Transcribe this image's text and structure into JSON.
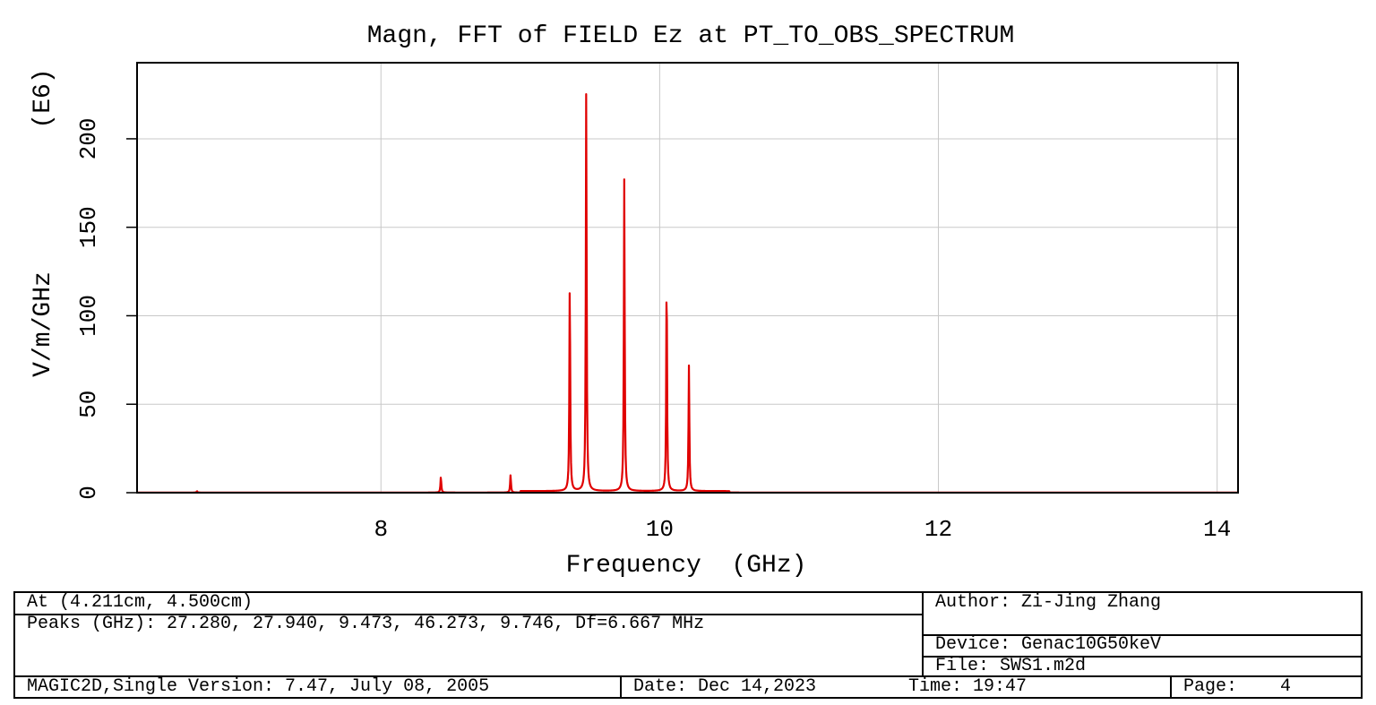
{
  "chart_data": {
    "type": "line",
    "title": "Magn, FFT of FIELD Ez at PT_TO_OBS_SPECTRUM",
    "xlabel": "Frequency  (GHz)",
    "ylabel": "V/m/GHz",
    "y_scale_label": "(E6)",
    "xlim": [
      6.25,
      14.15
    ],
    "ylim": [
      0,
      243
    ],
    "x_ticks": [
      8,
      10,
      12,
      14
    ],
    "y_ticks": [
      0,
      50,
      100,
      150,
      200
    ],
    "grid": true,
    "line_color": "#e00000",
    "series": [
      {
        "baseline": 0.3,
        "peaks": [
          {
            "x": 6.68,
            "y": 0.8
          },
          {
            "x": 8.43,
            "y": 9
          },
          {
            "x": 8.93,
            "y": 10
          },
          {
            "x": 9.355,
            "y": 120
          },
          {
            "x": 9.473,
            "y": 228
          },
          {
            "x": 9.746,
            "y": 177
          },
          {
            "x": 10.05,
            "y": 124
          },
          {
            "x": 10.21,
            "y": 71
          }
        ]
      }
    ]
  },
  "info": {
    "at": "At (4.211cm, 4.500cm)",
    "peaks": "Peaks (GHz): 27.280, 27.940, 9.473, 46.273, 9.746, Df=6.667 MHz",
    "author": "Author: Zi-Jing Zhang",
    "device": "Device: Genac10G50keV",
    "file": "File: SWS1.m2d",
    "version": "MAGIC2D,Single Version: 7.47, July 08, 2005",
    "date": "Date: Dec 14,2023",
    "time": "Time: 19:47",
    "page": "Page:    4"
  }
}
